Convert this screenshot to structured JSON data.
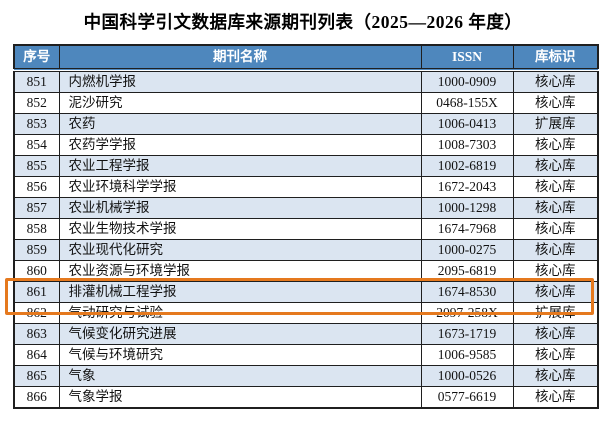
{
  "page": {
    "title": "中国科学引文数据库来源期刊列表（2025—2026 年度）"
  },
  "table": {
    "headers": [
      "序号",
      "期刊名称",
      "ISSN",
      "库标识"
    ],
    "rows": [
      {
        "no": "851",
        "name": "内燃机学报",
        "issn": "1000-0909",
        "tag": "核心库"
      },
      {
        "no": "852",
        "name": "泥沙研究",
        "issn": "0468-155X",
        "tag": "核心库"
      },
      {
        "no": "853",
        "name": "农药",
        "issn": "1006-0413",
        "tag": "扩展库"
      },
      {
        "no": "854",
        "name": "农药学学报",
        "issn": "1008-7303",
        "tag": "核心库"
      },
      {
        "no": "855",
        "name": "农业工程学报",
        "issn": "1002-6819",
        "tag": "核心库"
      },
      {
        "no": "856",
        "name": "农业环境科学学报",
        "issn": "1672-2043",
        "tag": "核心库"
      },
      {
        "no": "857",
        "name": "农业机械学报",
        "issn": "1000-1298",
        "tag": "核心库"
      },
      {
        "no": "858",
        "name": "农业生物技术学报",
        "issn": "1674-7968",
        "tag": "核心库"
      },
      {
        "no": "859",
        "name": "农业现代化研究",
        "issn": "1000-0275",
        "tag": "核心库"
      },
      {
        "no": "860",
        "name": "农业资源与环境学报",
        "issn": "2095-6819",
        "tag": "核心库"
      },
      {
        "no": "861",
        "name": "排灌机械工程学报",
        "issn": "1674-8530",
        "tag": "核心库"
      },
      {
        "no": "862",
        "name": "气动研究与试验",
        "issn": "2097-258X",
        "tag": "扩展库"
      },
      {
        "no": "863",
        "name": "气候变化研究进展",
        "issn": "1673-1719",
        "tag": "核心库"
      },
      {
        "no": "864",
        "name": "气候与环境研究",
        "issn": "1006-9585",
        "tag": "核心库"
      },
      {
        "no": "865",
        "name": "气象",
        "issn": "1000-0526",
        "tag": "核心库"
      },
      {
        "no": "866",
        "name": "气象学报",
        "issn": "0577-6619",
        "tag": "核心库"
      }
    ]
  },
  "highlight": {
    "row_no": "861",
    "color": "#e5791e"
  },
  "colors": {
    "header_bg": "#4e87bd",
    "header_text": "#ffffff",
    "alt_row_bg": "#dbe5f1",
    "border": "#1f1f1f",
    "highlight": "#e5791e"
  }
}
